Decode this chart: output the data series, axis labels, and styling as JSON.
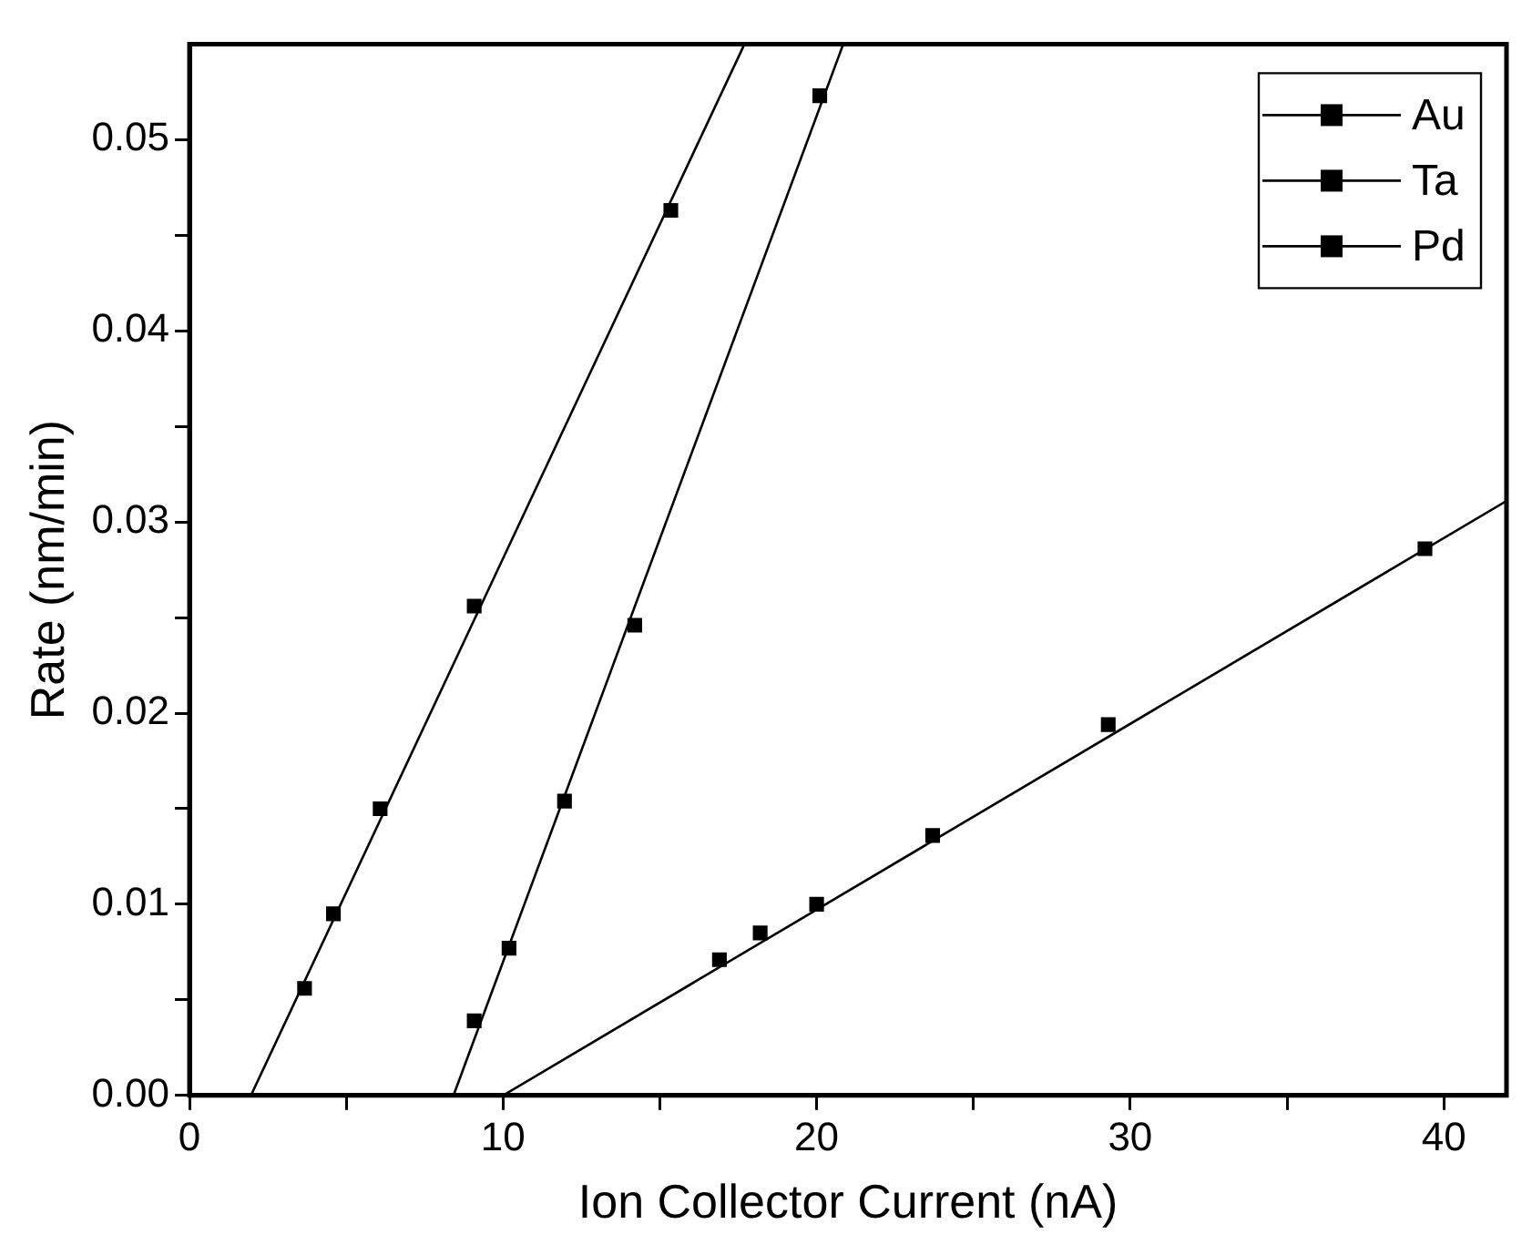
{
  "chart_data": {
    "type": "scatter",
    "xlabel": "Ion Collector Current (nA)",
    "ylabel": "Rate (nm/min)",
    "xlim": [
      0,
      42
    ],
    "ylim": [
      0,
      0.055
    ],
    "xticks": [
      0,
      {
        "value": 5,
        "label": null
      },
      10,
      {
        "value": 15,
        "label": null
      },
      20,
      {
        "value": 25,
        "label": null
      },
      30,
      {
        "value": 35,
        "label": null
      },
      40
    ],
    "yticks": [
      {
        "value": 0,
        "label": "0.00"
      },
      {
        "value": 0.005,
        "label": null
      },
      {
        "value": 0.01,
        "label": "0.01"
      },
      {
        "value": 0.015,
        "label": null
      },
      {
        "value": 0.02,
        "label": "0.02"
      },
      {
        "value": 0.025,
        "label": null
      },
      {
        "value": 0.03,
        "label": "0.03"
      },
      {
        "value": 0.035,
        "label": null
      },
      {
        "value": 0.04,
        "label": "0.04"
      },
      {
        "value": 0.045,
        "label": null
      },
      {
        "value": 0.05,
        "label": "0.05"
      }
    ],
    "grid": false,
    "legend": "top right",
    "marker": "square",
    "series": [
      {
        "name": "Au",
        "color": "#000000",
        "x": [
          3.67,
          4.59,
          6.08,
          9.08,
          15.35
        ],
        "values": [
          0.0056,
          0.0095,
          0.015,
          0.0256,
          0.0463
        ]
      },
      {
        "name": "Ta",
        "color": "#000000",
        "x": [
          9.08,
          10.19,
          11.96,
          14.2,
          20.1
        ],
        "values": [
          0.0039,
          0.0077,
          0.0154,
          0.0246,
          0.0523
        ]
      },
      {
        "name": "Pd",
        "color": "#000000",
        "x": [
          16.9,
          18.2,
          20.0,
          23.7,
          29.3,
          39.4
        ],
        "values": [
          0.0071,
          0.0085,
          0.01,
          0.0136,
          0.0194,
          0.0286
        ]
      },
      {
        "type": "line",
        "color": "#000000",
        "marker": "none",
        "x": [
          1.96,
          17.7
        ],
        "values": [
          0,
          0.055
        ]
      },
      {
        "type": "line",
        "color": "#000000",
        "marker": "none",
        "x": [
          8.42,
          20.85
        ],
        "values": [
          0,
          0.055
        ]
      },
      {
        "type": "line",
        "color": "#000000",
        "marker": "none",
        "x": [
          10.0,
          42
        ],
        "values": [
          0,
          0.0311
        ]
      }
    ]
  }
}
